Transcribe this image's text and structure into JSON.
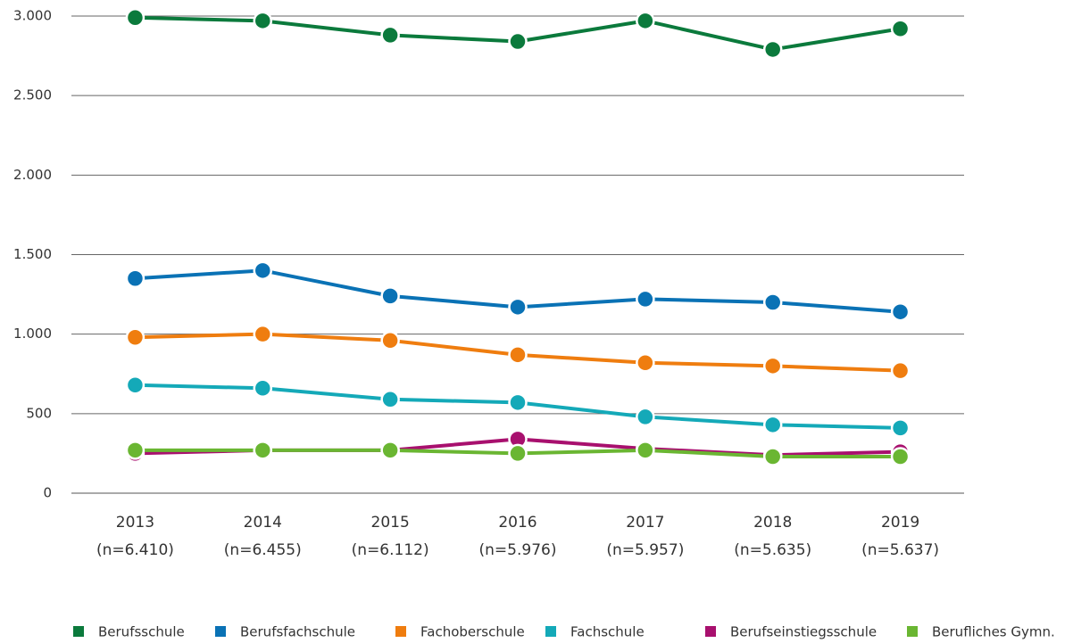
{
  "chart_data": {
    "type": "line",
    "categories": [
      "2013",
      "2014",
      "2015",
      "2016",
      "2017",
      "2018",
      "2019"
    ],
    "category_notes": [
      "(n=6.410)",
      "(n=6.455)",
      "(n=6.112)",
      "(n=5.976)",
      "(n=5.957)",
      "(n=5.635)",
      "(n=5.637)"
    ],
    "series": [
      {
        "name": "Berufsschule",
        "color": "#0b7a3c",
        "values": [
          2990,
          2970,
          2880,
          2840,
          2970,
          2790,
          2920
        ]
      },
      {
        "name": "Berufsfachschule",
        "color": "#0a72b5",
        "values": [
          1350,
          1400,
          1240,
          1170,
          1220,
          1200,
          1140
        ]
      },
      {
        "name": "Fachoberschule",
        "color": "#ef7d0f",
        "values": [
          980,
          1000,
          960,
          870,
          820,
          800,
          770
        ]
      },
      {
        "name": "Fachschule",
        "color": "#14a9b8",
        "values": [
          680,
          660,
          590,
          570,
          480,
          430,
          410
        ]
      },
      {
        "name": "Berufseinstiegsschule",
        "color": "#a8106e",
        "values": [
          250,
          270,
          270,
          340,
          280,
          240,
          260
        ]
      },
      {
        "name": "Berufliches Gymn.",
        "color": "#6ab632",
        "values": [
          270,
          270,
          270,
          250,
          270,
          230,
          230
        ]
      }
    ],
    "ylim": [
      0,
      3000
    ],
    "yticks": [
      0,
      500,
      {
        "value": 1000,
        "label": "1.000"
      },
      {
        "value": 1500,
        "label": "1.500"
      },
      {
        "value": 2000,
        "label": "2.000"
      },
      {
        "value": 2500,
        "label": "2.500"
      },
      {
        "value": 3000,
        "label": "3.000"
      }
    ],
    "grid": true,
    "legend": "bottom"
  }
}
